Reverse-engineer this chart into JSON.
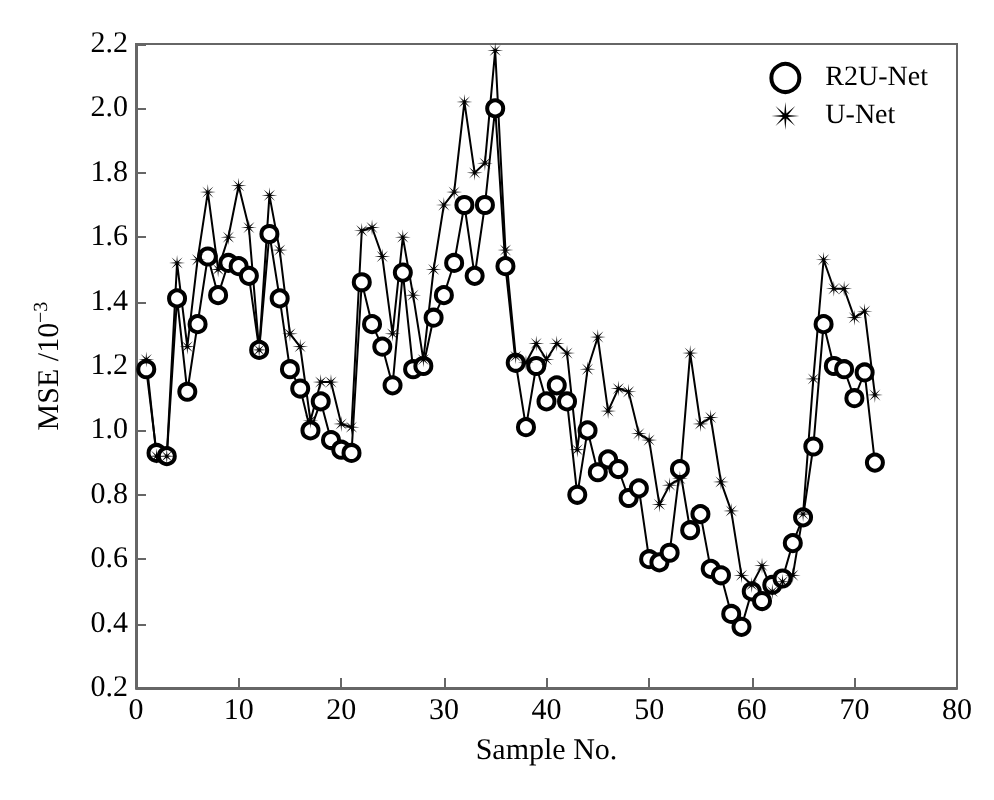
{
  "chart_data": {
    "type": "line",
    "xlabel": "Sample No.",
    "ylabel": "MSE /10$^{−3}$",
    "x": [
      1,
      2,
      3,
      4,
      5,
      6,
      7,
      8,
      9,
      10,
      11,
      12,
      13,
      14,
      15,
      16,
      17,
      18,
      19,
      20,
      21,
      22,
      23,
      24,
      25,
      26,
      27,
      28,
      29,
      30,
      31,
      32,
      33,
      34,
      35,
      36,
      37,
      38,
      39,
      40,
      41,
      42,
      43,
      44,
      45,
      46,
      47,
      48,
      49,
      50,
      51,
      52,
      53,
      54,
      55,
      56,
      57,
      58,
      59,
      60,
      61,
      62,
      63,
      64,
      65,
      66,
      67,
      68,
      69,
      70,
      71,
      72
    ],
    "series": [
      {
        "name": "R2U-Net",
        "color": "#000000",
        "marker": "circle",
        "values": [
          1.19,
          0.93,
          0.92,
          1.41,
          1.12,
          1.33,
          1.54,
          1.42,
          1.52,
          1.51,
          1.48,
          1.25,
          1.61,
          1.41,
          1.19,
          1.13,
          1.0,
          1.09,
          0.97,
          0.94,
          0.93,
          1.46,
          1.33,
          1.26,
          1.14,
          1.49,
          1.19,
          1.2,
          1.35,
          1.42,
          1.52,
          1.7,
          1.48,
          1.7,
          2.0,
          1.51,
          1.21,
          1.01,
          1.2,
          1.09,
          1.14,
          1.09,
          0.8,
          1.0,
          0.87,
          0.91,
          0.88,
          0.79,
          0.82,
          0.6,
          0.59,
          0.62,
          0.88,
          0.69,
          0.74,
          0.57,
          0.55,
          0.43,
          0.39,
          0.5,
          0.47,
          0.52,
          0.54,
          0.65,
          0.73,
          0.95,
          1.33,
          1.2,
          1.19,
          1.1,
          1.18,
          0.9
        ]
      },
      {
        "name": "U-Net",
        "color": "#000000",
        "marker": "star",
        "values": [
          1.22,
          0.92,
          0.92,
          1.52,
          1.26,
          1.53,
          1.74,
          1.5,
          1.6,
          1.76,
          1.63,
          1.25,
          1.73,
          1.56,
          1.3,
          1.26,
          1.03,
          1.15,
          1.15,
          1.02,
          1.01,
          1.62,
          1.63,
          1.54,
          1.3,
          1.6,
          1.42,
          1.22,
          1.5,
          1.7,
          1.74,
          2.02,
          1.8,
          1.83,
          2.18,
          1.56,
          1.23,
          1.21,
          1.27,
          1.22,
          1.27,
          1.24,
          0.94,
          1.19,
          1.29,
          1.06,
          1.13,
          1.12,
          0.99,
          0.97,
          0.77,
          0.83,
          0.85,
          1.24,
          1.02,
          1.04,
          0.84,
          0.75,
          0.55,
          0.52,
          0.58,
          0.5,
          0.53,
          0.55,
          0.74,
          1.16,
          1.53,
          1.44,
          1.44,
          1.35,
          1.37,
          1.11
        ]
      }
    ],
    "xlim": [
      0,
      80
    ],
    "xticks": [
      0,
      10,
      20,
      30,
      40,
      50,
      60,
      70,
      80
    ],
    "ylim": [
      0.2,
      2.2
    ],
    "yticks": [
      {
        "value": 0.2,
        "label": "0.2"
      },
      {
        "value": 0.4,
        "label": "0.4"
      },
      {
        "value": 0.6,
        "label": "0.6"
      },
      {
        "value": 0.8,
        "label": "0.8"
      },
      {
        "value": 1.0,
        "label": "1.0"
      },
      {
        "value": 1.2,
        "label": "1.2"
      },
      {
        "value": 1.4,
        "label": "1.4"
      },
      {
        "value": 1.6,
        "label": "1.6"
      },
      {
        "value": 1.8,
        "label": "1.8"
      },
      {
        "value": 2.0,
        "label": "2.0"
      },
      {
        "value": 2.2,
        "label": "2.2"
      }
    ],
    "legend": "top right",
    "line_style": "solid",
    "grid": false
  }
}
